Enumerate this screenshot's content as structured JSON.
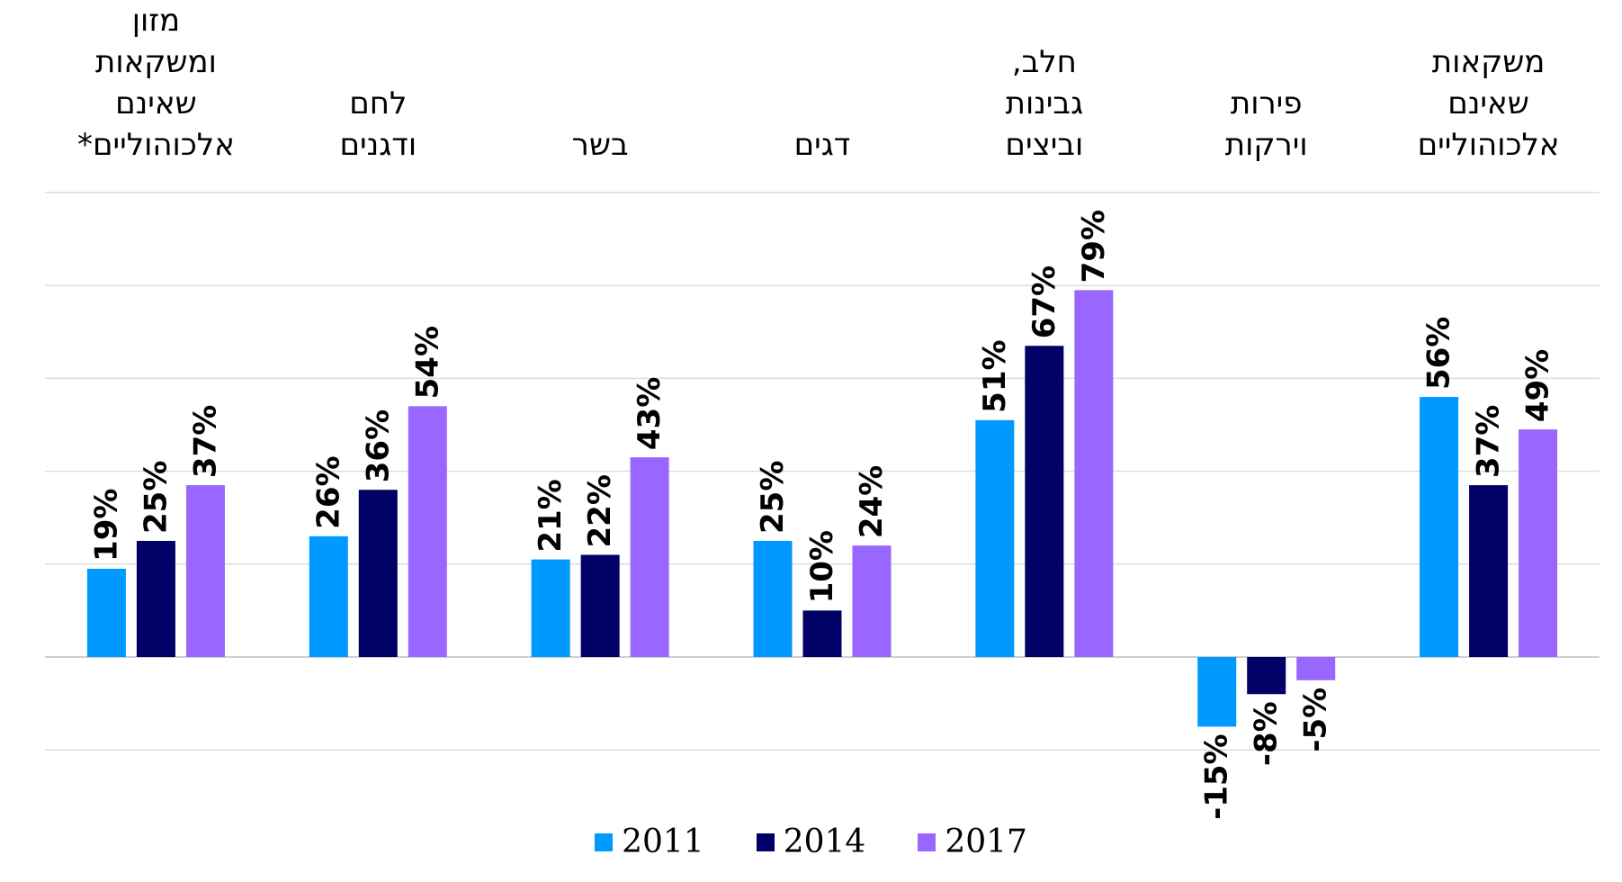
{
  "chart_data": {
    "type": "bar",
    "categories": [
      "משקאות\nשאינם\nאלכוהוליים",
      "פירות\nוירקות",
      "חלב,\nגבינות\nוביצים",
      "דגים",
      "בשר",
      "לחם\nודגנים",
      "מזון\nומשקאות\nשאינם\nאלכוהוליים*"
    ],
    "series": [
      {
        "name": "2011",
        "color": "#0099ff",
        "values": [
          56,
          -15,
          51,
          25,
          21,
          26,
          19
        ],
        "labels": [
          "56%",
          "-15%",
          "51%",
          "25%",
          "21%",
          "26%",
          "19%"
        ]
      },
      {
        "name": "2014",
        "color": "#000066",
        "values": [
          37,
          -8,
          67,
          10,
          22,
          36,
          25
        ],
        "labels": [
          "37%",
          "-8%",
          "67%",
          "10%",
          "22%",
          "36%",
          "25%"
        ]
      },
      {
        "name": "2017",
        "color": "#9966ff",
        "values": [
          49,
          -5,
          79,
          24,
          43,
          54,
          37
        ],
        "labels": [
          "49%",
          "-5%",
          "79%",
          "24%",
          "43%",
          "54%",
          "37%"
        ]
      }
    ],
    "category_order": "right-to-left",
    "ylim": [
      -20,
      100
    ],
    "gridlines": true,
    "legend_position": "bottom"
  }
}
